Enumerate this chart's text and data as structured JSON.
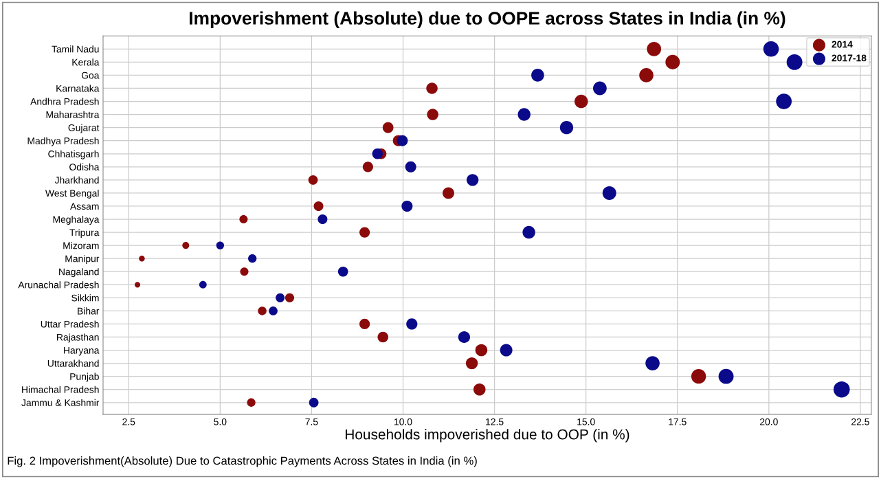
{
  "chart_data": {
    "type": "bubble",
    "orientation": "horizontal",
    "title": "Impoverishment (Absolute) due to OOPE across States in India (in %)",
    "xlabel": "Households impoverished due to OOP (in %)",
    "categories": [
      "Tamil Nadu",
      "Kerala",
      "Goa",
      "Karnataka",
      "Andhra Pradesh",
      "Maharashtra",
      "Gujarat",
      "Madhya Pradesh",
      "Chhatisgarh",
      "Odisha",
      "Jharkhand",
      "West Bengal",
      "Assam",
      "Meghalaya",
      "Tripura",
      "Mizoram",
      "Manipur",
      "Nagaland",
      "Arunachal Pradesh",
      "Sikkim",
      "Bihar",
      "Uttar Pradesh",
      "Rajasthan",
      "Haryana",
      "Uttarakhand",
      "Punjab",
      "Himachal Pradesh",
      "Jammu & Kashmir"
    ],
    "series": [
      {
        "name": "2014",
        "color": "#8b0a0a",
        "values": [
          16.86,
          17.37,
          16.65,
          10.79,
          14.87,
          10.81,
          9.59,
          9.87,
          9.4,
          9.04,
          7.54,
          11.24,
          7.69,
          5.64,
          8.95,
          4.06,
          2.86,
          5.66,
          2.74,
          6.9,
          6.15,
          8.95,
          9.45,
          12.14,
          11.88,
          18.08,
          12.09,
          5.85
        ],
        "sizes": [
          0.77,
          0.79,
          0.76,
          0.49,
          0.68,
          0.49,
          0.44,
          0.45,
          0.43,
          0.41,
          0.34,
          0.51,
          0.35,
          0.26,
          0.41,
          0.18,
          0.13,
          0.26,
          0.12,
          0.31,
          0.28,
          0.41,
          0.43,
          0.55,
          0.54,
          0.82,
          0.55,
          0.27
        ]
      },
      {
        "name": "2017-18",
        "color": "#0a0a8b",
        "values": [
          20.06,
          20.7,
          13.68,
          15.38,
          20.41,
          13.31,
          14.47,
          9.98,
          9.3,
          10.21,
          11.9,
          15.64,
          10.11,
          7.8,
          13.44,
          5.0,
          5.88,
          8.36,
          4.53,
          6.64,
          6.45,
          10.24,
          11.67,
          12.82,
          16.82,
          18.83,
          21.99,
          7.56
        ],
        "sizes": [
          0.91,
          0.94,
          0.62,
          0.7,
          0.93,
          0.61,
          0.66,
          0.45,
          0.42,
          0.46,
          0.54,
          0.71,
          0.46,
          0.35,
          0.61,
          0.23,
          0.27,
          0.38,
          0.21,
          0.3,
          0.29,
          0.47,
          0.53,
          0.58,
          0.76,
          0.86,
          1.0,
          0.34
        ]
      }
    ],
    "xlim": [
      1.8,
      22.8
    ],
    "xticks": [
      {
        "value": 2.5,
        "label": "2.5"
      },
      {
        "value": 5,
        "label": "5.0"
      },
      {
        "value": 7.5,
        "label": "7.5"
      },
      {
        "value": 10,
        "label": "10.0"
      },
      {
        "value": 12.5,
        "label": "12.5"
      },
      {
        "value": 15,
        "label": "15.0"
      },
      {
        "value": 17.5,
        "label": "17.5"
      },
      {
        "value": 20,
        "label": "20.0"
      },
      {
        "value": 22.5,
        "label": "22.5"
      }
    ],
    "grid": true,
    "legend": "top right",
    "marker": "circle",
    "annotations": [
      "Fig. 2 Impoverishment(Absolute) Due to Catastrophic Payments Across States in India (in %)"
    ]
  }
}
